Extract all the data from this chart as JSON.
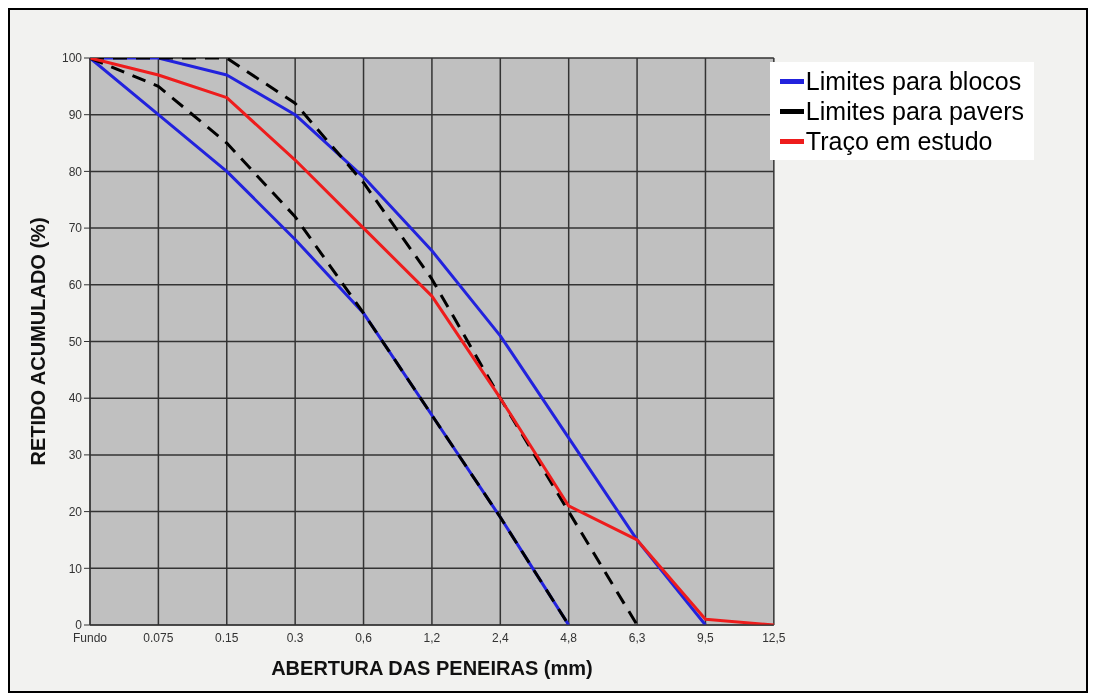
{
  "chart_data": {
    "type": "line",
    "xlabel": "ABERTURA DAS PENEIRAS (mm)",
    "ylabel": "RETIDO ACUMULADO (%)",
    "categories": [
      "Fundo",
      "0.075",
      "0.15",
      "0.3",
      "0,6",
      "1,2",
      "2,4",
      "4,8",
      "6,3",
      "9,5",
      "12,5"
    ],
    "ylim": [
      0,
      100
    ],
    "yticks": [
      0,
      10,
      20,
      30,
      40,
      50,
      60,
      70,
      80,
      90,
      100
    ],
    "grid": true,
    "legend": "top right",
    "marker": "none",
    "series": [
      {
        "name": "Limites para blocos",
        "color": "#2222dd",
        "line_style": "solid",
        "values": [
          100,
          100,
          97,
          90,
          79,
          66,
          51,
          33,
          15,
          0,
          null
        ]
      },
      {
        "color": "#2222dd",
        "line_style": "solid",
        "values": [
          100,
          90,
          80,
          68,
          55,
          37,
          19,
          0,
          null,
          null,
          null
        ]
      },
      {
        "name": "Limites para pavers",
        "color": "#000000",
        "line_style": "dashed",
        "values": [
          100,
          100,
          100,
          92,
          78,
          61,
          40,
          20,
          0,
          null,
          null
        ]
      },
      {
        "color": "#000000",
        "line_style": "dashed",
        "values": [
          100,
          95,
          85,
          72,
          55,
          37,
          19,
          0,
          null,
          null,
          null
        ]
      },
      {
        "name": "Traço em estudo",
        "color": "#ee1c1c",
        "line_style": "solid",
        "values": [
          100,
          97,
          93,
          82,
          70,
          58,
          40,
          21,
          15,
          1,
          0
        ]
      }
    ]
  }
}
